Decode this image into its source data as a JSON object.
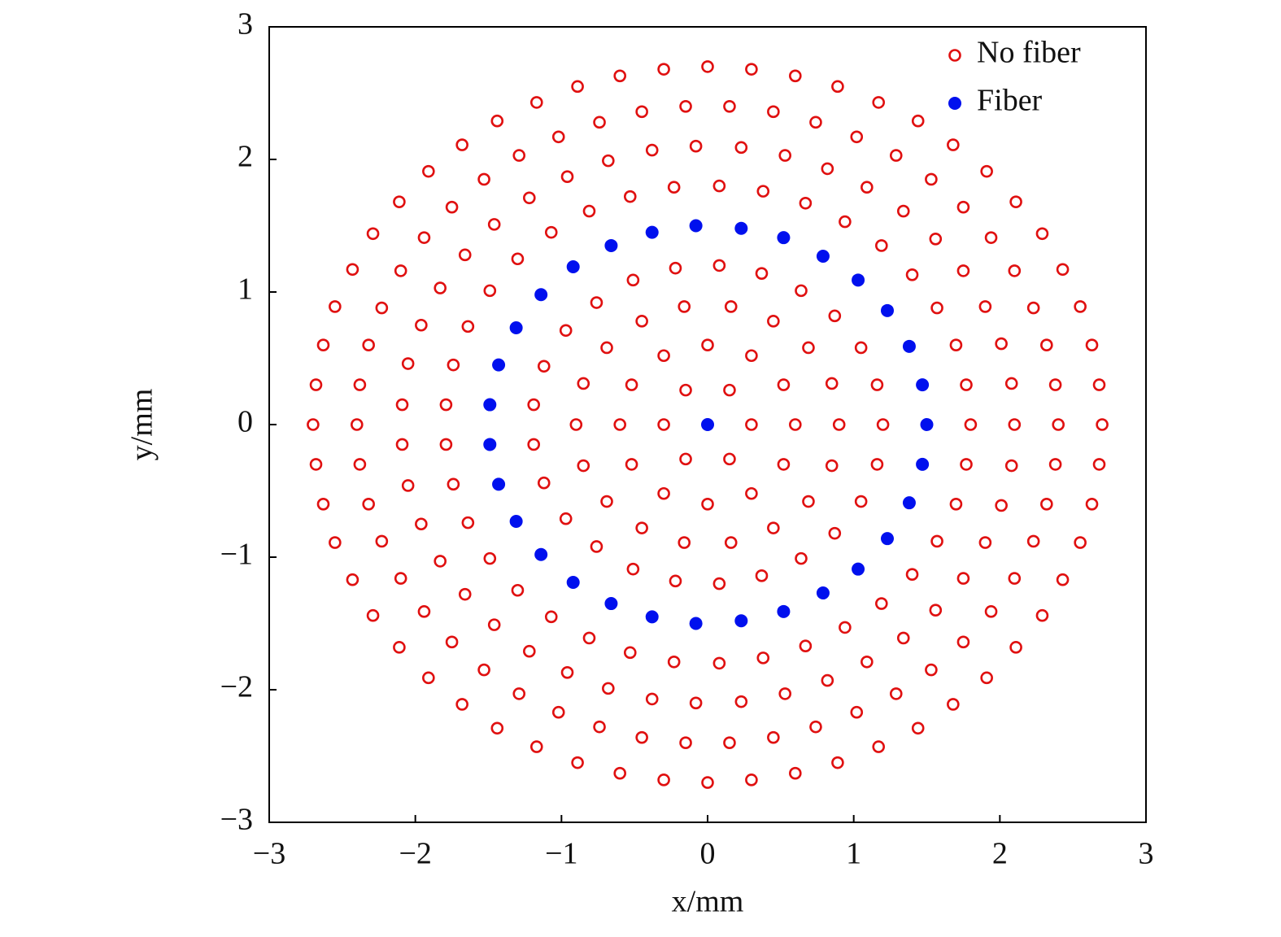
{
  "chart_data": {
    "type": "scatter",
    "x_label": "x/mm",
    "y_label": "y/mm",
    "xlim": [
      -3,
      3
    ],
    "ylim": [
      -3,
      3
    ],
    "xticks": [
      {
        "value": -3,
        "label": "−3"
      },
      {
        "value": -2,
        "label": "−2"
      },
      {
        "value": -1,
        "label": "−1"
      },
      0,
      1,
      2,
      3
    ],
    "yticks": [
      {
        "value": -3,
        "label": "−3"
      },
      {
        "value": -2,
        "label": "−2"
      },
      {
        "value": -1,
        "label": "−1"
      },
      0,
      1,
      2,
      3
    ],
    "legend": "upper right",
    "grid": false,
    "series": [
      {
        "name": "No fiber",
        "color": "#e01010",
        "filled": false,
        "x": [
          0.3,
          0.15,
          -0.15,
          -0.3,
          0.15,
          -0.15,
          0.6,
          0.52,
          0.3,
          0,
          -0.3,
          -0.52,
          -0.6,
          0.52,
          0.3,
          0,
          -0.3,
          -0.52,
          0.9,
          0.85,
          0.69,
          0.45,
          0.16,
          -0.16,
          -0.45,
          -0.69,
          -0.85,
          -0.9,
          0.85,
          0.69,
          0.45,
          0.16,
          -0.16,
          -0.45,
          -0.69,
          -0.85,
          1.2,
          1.16,
          1.05,
          0.87,
          0.64,
          0.37,
          0.08,
          -0.22,
          -0.51,
          -0.76,
          -0.97,
          -1.12,
          -1.19,
          1.16,
          1.05,
          0.87,
          0.64,
          0.37,
          0.08,
          -0.22,
          -0.51,
          -0.76,
          -0.97,
          -1.12,
          -1.19,
          1.8,
          1.77,
          1.7,
          1.57,
          1.4,
          1.19,
          0.94,
          0.67,
          0.38,
          0.08,
          -0.23,
          -0.53,
          -0.81,
          -1.07,
          -1.3,
          -1.49,
          -1.64,
          -1.74,
          -1.79,
          1.77,
          1.7,
          1.57,
          1.4,
          1.19,
          0.94,
          0.67,
          0.38,
          0.08,
          -0.23,
          -0.53,
          -0.81,
          -1.07,
          -1.3,
          -1.49,
          -1.64,
          -1.74,
          -1.79,
          2.1,
          2.08,
          2.01,
          1.9,
          1.75,
          1.56,
          1.34,
          1.09,
          0.82,
          0.53,
          0.23,
          -0.08,
          -0.38,
          -0.68,
          -0.96,
          -1.22,
          -1.46,
          -1.66,
          -1.83,
          -1.96,
          -2.05,
          -2.09,
          2.08,
          2.01,
          1.9,
          1.75,
          1.56,
          1.34,
          1.09,
          0.82,
          0.53,
          0.23,
          -0.08,
          -0.38,
          -0.68,
          -0.96,
          -1.22,
          -1.46,
          -1.66,
          -1.83,
          -1.96,
          -2.05,
          -2.09,
          2.4,
          2.38,
          2.32,
          2.23,
          2.1,
          1.94,
          1.75,
          1.53,
          1.29,
          1.02,
          0.74,
          0.45,
          0.15,
          -0.15,
          -0.45,
          -0.74,
          -1.02,
          -1.29,
          -1.53,
          -1.75,
          -1.94,
          -2.1,
          -2.23,
          -2.32,
          -2.38,
          -2.4,
          2.38,
          2.32,
          2.23,
          2.1,
          1.94,
          1.75,
          1.53,
          1.29,
          1.02,
          0.74,
          0.45,
          0.15,
          -0.15,
          -0.45,
          -0.74,
          -1.02,
          -1.29,
          -1.53,
          -1.75,
          -1.94,
          -2.1,
          -2.23,
          -2.32,
          -2.38,
          2.7,
          2.68,
          2.63,
          2.55,
          2.43,
          2.29,
          2.11,
          1.91,
          1.68,
          1.44,
          1.17,
          0.89,
          0.6,
          0.3,
          0,
          -0.3,
          -0.6,
          -0.89,
          -1.17,
          -1.44,
          -1.68,
          -1.91,
          -2.11,
          -2.29,
          -2.43,
          -2.55,
          -2.63,
          -2.68,
          -2.7,
          2.68,
          2.63,
          2.55,
          2.43,
          2.29,
          2.11,
          1.91,
          1.68,
          1.44,
          1.17,
          0.89,
          0.6,
          0.3,
          0,
          -0.3,
          -0.6,
          -0.89,
          -1.17,
          -1.44,
          -1.68,
          -1.91,
          -2.11,
          -2.29,
          -2.43,
          -2.55,
          -2.63,
          -2.68
        ],
        "y": [
          0,
          0.26,
          0.26,
          0,
          -0.26,
          -0.26,
          0,
          0.3,
          0.52,
          0.6,
          0.52,
          0.3,
          0,
          -0.3,
          -0.52,
          -0.6,
          -0.52,
          -0.3,
          0,
          0.31,
          0.58,
          0.78,
          0.89,
          0.89,
          0.78,
          0.58,
          0.31,
          0,
          -0.31,
          -0.58,
          -0.78,
          -0.89,
          -0.89,
          -0.78,
          -0.58,
          -0.31,
          0,
          0.3,
          0.58,
          0.82,
          1.01,
          1.14,
          1.2,
          1.18,
          1.09,
          0.92,
          0.71,
          0.44,
          0.15,
          -0.3,
          -0.58,
          -0.82,
          -1.01,
          -1.14,
          -1.2,
          -1.18,
          -1.09,
          -0.92,
          -0.71,
          -0.44,
          -0.15,
          0,
          0.3,
          0.6,
          0.88,
          1.13,
          1.35,
          1.53,
          1.67,
          1.76,
          1.8,
          1.79,
          1.72,
          1.61,
          1.45,
          1.25,
          1.01,
          0.74,
          0.45,
          0.15,
          -0.3,
          -0.6,
          -0.88,
          -1.13,
          -1.35,
          -1.53,
          -1.67,
          -1.76,
          -1.8,
          -1.79,
          -1.72,
          -1.61,
          -1.45,
          -1.25,
          -1.01,
          -0.74,
          -0.45,
          -0.15,
          0,
          0.31,
          0.61,
          0.89,
          1.16,
          1.4,
          1.61,
          1.79,
          1.93,
          2.03,
          2.09,
          2.1,
          2.07,
          1.99,
          1.87,
          1.71,
          1.51,
          1.28,
          1.03,
          0.75,
          0.46,
          0.15,
          -0.31,
          -0.61,
          -0.89,
          -1.16,
          -1.4,
          -1.61,
          -1.79,
          -1.93,
          -2.03,
          -2.09,
          -2.1,
          -2.07,
          -1.99,
          -1.87,
          -1.71,
          -1.51,
          -1.28,
          -1.03,
          -0.75,
          -0.46,
          -0.15,
          0,
          0.3,
          0.6,
          0.88,
          1.16,
          1.41,
          1.64,
          1.85,
          2.03,
          2.17,
          2.28,
          2.36,
          2.4,
          2.4,
          2.36,
          2.28,
          2.17,
          2.03,
          1.85,
          1.64,
          1.41,
          1.16,
          0.88,
          0.6,
          0.3,
          0,
          -0.3,
          -0.6,
          -0.88,
          -1.16,
          -1.41,
          -1.64,
          -1.85,
          -2.03,
          -2.17,
          -2.28,
          -2.36,
          -2.4,
          -2.4,
          -2.36,
          -2.28,
          -2.17,
          -2.03,
          -1.85,
          -1.64,
          -1.41,
          -1.16,
          -0.88,
          -0.6,
          -0.3,
          0,
          0.3,
          0.6,
          0.89,
          1.17,
          1.44,
          1.68,
          1.91,
          2.11,
          2.29,
          2.43,
          2.55,
          2.63,
          2.68,
          2.7,
          2.68,
          2.63,
          2.55,
          2.43,
          2.29,
          2.11,
          1.91,
          1.68,
          1.44,
          1.17,
          0.89,
          0.6,
          0.3,
          0,
          -0.3,
          -0.6,
          -0.89,
          -1.17,
          -1.44,
          -1.68,
          -1.91,
          -2.11,
          -2.29,
          -2.43,
          -2.55,
          -2.63,
          -2.68,
          -2.7,
          -2.68,
          -2.63,
          -2.55,
          -2.43,
          -2.29,
          -2.11,
          -1.91,
          -1.68,
          -1.44,
          -1.17,
          -0.89,
          -0.6,
          -0.3
        ]
      },
      {
        "name": "Fiber",
        "color": "#0010ee",
        "filled": true,
        "x": [
          0,
          1.5,
          1.47,
          1.38,
          1.23,
          1.03,
          0.79,
          0.52,
          0.23,
          -0.08,
          -0.38,
          -0.66,
          -0.92,
          -1.14,
          -1.31,
          -1.43,
          -1.49,
          1.47,
          1.38,
          1.23,
          1.03,
          0.79,
          0.52,
          0.23,
          -0.08,
          -0.38,
          -0.66,
          -0.92,
          -1.14,
          -1.31,
          -1.43,
          -1.49
        ],
        "y": [
          0,
          0,
          0.3,
          0.59,
          0.86,
          1.09,
          1.27,
          1.41,
          1.48,
          1.5,
          1.45,
          1.35,
          1.19,
          0.98,
          0.73,
          0.45,
          0.15,
          -0.3,
          -0.59,
          -0.86,
          -1.09,
          -1.27,
          -1.41,
          -1.48,
          -1.5,
          -1.45,
          -1.35,
          -1.19,
          -0.98,
          -0.73,
          -0.45,
          -0.15
        ]
      }
    ]
  }
}
